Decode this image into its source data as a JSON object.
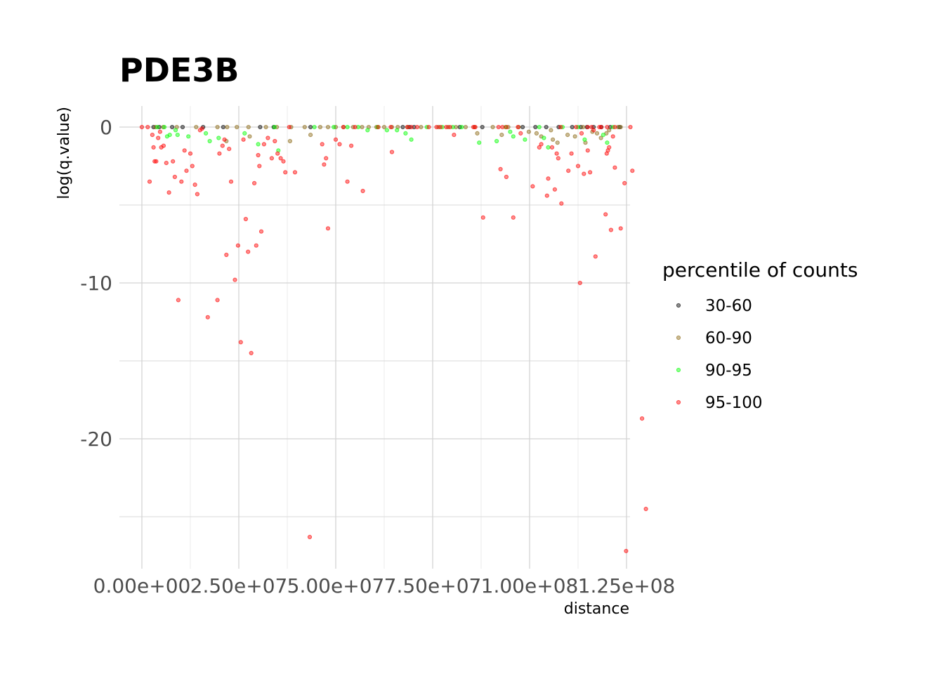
{
  "chart_data": {
    "type": "scatter",
    "title": "PDE3B",
    "xlabel": "distance",
    "ylabel": "log(q.value)",
    "xlim": [
      -5000000,
      126000000
    ],
    "ylim": [
      -28.5,
      1.3
    ],
    "x_ticks": [
      0,
      25000000,
      50000000,
      75000000,
      100000000,
      125000000
    ],
    "x_tick_labels": [
      "0.00e+00",
      "2.50e+07",
      "5.00e+07",
      "7.50e+07",
      "1.00e+08",
      "1.25e+08"
    ],
    "y_ticks": [
      0,
      -10,
      -20
    ],
    "y_tick_labels": [
      "0",
      "-10",
      "-20"
    ],
    "grid": true,
    "legend": {
      "title": "percentile of counts",
      "position": "right"
    },
    "series": [
      {
        "name": "30-60",
        "color": "#000000",
        "points": [
          [
            3000000,
            0
          ],
          [
            4500000,
            0
          ],
          [
            7800000,
            0
          ],
          [
            10500000,
            0
          ],
          [
            15800000,
            0
          ],
          [
            21000000,
            0
          ],
          [
            30500000,
            0
          ],
          [
            34000000,
            0
          ],
          [
            43500000,
            0
          ],
          [
            67300000,
            0
          ],
          [
            69000000,
            0
          ],
          [
            70200000,
            0
          ],
          [
            82000000,
            0
          ],
          [
            87800000,
            0
          ],
          [
            98200000,
            0
          ],
          [
            101500000,
            0
          ],
          [
            104300000,
            0
          ],
          [
            107500000,
            0
          ],
          [
            111000000,
            0
          ],
          [
            113200000,
            0
          ],
          [
            114800000,
            0
          ],
          [
            116500000,
            0
          ],
          [
            118500000,
            0
          ],
          [
            120800000,
            0
          ],
          [
            123200000,
            0
          ]
        ]
      },
      {
        "name": "60-90",
        "color": "#8b6914",
        "points": [
          [
            3500000,
            0
          ],
          [
            5500000,
            0
          ],
          [
            9000000,
            0
          ],
          [
            14000000,
            0
          ],
          [
            19500000,
            0
          ],
          [
            22000000,
            0
          ],
          [
            24500000,
            0
          ],
          [
            27500000,
            0
          ],
          [
            32000000,
            0
          ],
          [
            34800000,
            0
          ],
          [
            38500000,
            0
          ],
          [
            42000000,
            0
          ],
          [
            43500000,
            -0.5
          ],
          [
            46000000,
            0
          ],
          [
            48000000,
            0
          ],
          [
            50000000,
            0
          ],
          [
            52000000,
            0
          ],
          [
            54500000,
            0
          ],
          [
            56800000,
            0
          ],
          [
            58500000,
            0
          ],
          [
            60500000,
            0
          ],
          [
            62500000,
            0
          ],
          [
            64500000,
            0
          ],
          [
            66000000,
            0
          ],
          [
            68500000,
            0
          ],
          [
            72000000,
            0
          ],
          [
            76500000,
            0
          ],
          [
            79000000,
            0
          ],
          [
            81000000,
            0
          ],
          [
            83500000,
            0
          ],
          [
            85800000,
            0
          ],
          [
            86500000,
            -0.4
          ],
          [
            90500000,
            0
          ],
          [
            92800000,
            -0.5
          ],
          [
            94500000,
            0
          ],
          [
            97200000,
            0
          ],
          [
            99800000,
            -0.3
          ],
          [
            101800000,
            -0.4
          ],
          [
            103000000,
            -0.6
          ],
          [
            105500000,
            -0.2
          ],
          [
            106000000,
            -0.8
          ],
          [
            107200000,
            -1.0
          ],
          [
            109800000,
            -0.5
          ],
          [
            111700000,
            -0.6
          ],
          [
            113800000,
            0
          ],
          [
            114400000,
            -1.0
          ],
          [
            116200000,
            -0.3
          ],
          [
            117400000,
            -0.4
          ],
          [
            118400000,
            -0.7
          ],
          [
            119800000,
            -0.4
          ],
          [
            120500000,
            -0.2
          ],
          [
            122800000,
            0
          ],
          [
            123500000,
            0
          ],
          [
            38200000,
            -0.9
          ],
          [
            27800000,
            -0.6
          ],
          [
            21800000,
            -0.9
          ]
        ]
      },
      {
        "name": "90-95",
        "color": "#00ff00",
        "points": [
          [
            4000000,
            0
          ],
          [
            5800000,
            0
          ],
          [
            6500000,
            -0.6
          ],
          [
            7200000,
            -0.5
          ],
          [
            8700000,
            -0.2
          ],
          [
            9200000,
            -0.5
          ],
          [
            12000000,
            -0.6
          ],
          [
            16500000,
            -0.4
          ],
          [
            17500000,
            -0.9
          ],
          [
            19800000,
            -0.7
          ],
          [
            26500000,
            -0.4
          ],
          [
            30000000,
            -1.1
          ],
          [
            34200000,
            0
          ],
          [
            35200000,
            -1.5
          ],
          [
            44500000,
            0
          ],
          [
            49500000,
            0
          ],
          [
            53000000,
            0
          ],
          [
            55800000,
            0
          ],
          [
            58200000,
            -0.2
          ],
          [
            60800000,
            0
          ],
          [
            63200000,
            -0.2
          ],
          [
            65800000,
            -0.2
          ],
          [
            68000000,
            -0.4
          ],
          [
            69500000,
            -0.8
          ],
          [
            73500000,
            0
          ],
          [
            77500000,
            0
          ],
          [
            80200000,
            0
          ],
          [
            82500000,
            0
          ],
          [
            87000000,
            -1.0
          ],
          [
            91500000,
            -0.9
          ],
          [
            93800000,
            0
          ],
          [
            95000000,
            -0.3
          ],
          [
            95800000,
            -0.6
          ],
          [
            98800000,
            -0.8
          ],
          [
            102500000,
            0
          ],
          [
            103700000,
            -0.7
          ],
          [
            104800000,
            -1.3
          ],
          [
            108500000,
            0
          ],
          [
            112500000,
            0
          ],
          [
            114200000,
            -0.8
          ],
          [
            119000000,
            -0.5
          ],
          [
            120000000,
            -1.0
          ],
          [
            121500000,
            0
          ]
        ]
      },
      {
        "name": "95-100",
        "color": "#ff0000",
        "points": [
          [
            0,
            0
          ],
          [
            1500000,
            0
          ],
          [
            2000000,
            -3.5
          ],
          [
            2700000,
            -0.5
          ],
          [
            3000000,
            -1.3
          ],
          [
            3300000,
            -2.2
          ],
          [
            3700000,
            -2.2
          ],
          [
            4200000,
            -0.7
          ],
          [
            4700000,
            -0.3
          ],
          [
            5000000,
            -1.3
          ],
          [
            5600000,
            -1.2
          ],
          [
            6300000,
            -2.3
          ],
          [
            7000000,
            -4.2
          ],
          [
            8000000,
            -2.2
          ],
          [
            8500000,
            -3.2
          ],
          [
            9400000,
            -11.1
          ],
          [
            10200000,
            -3.5
          ],
          [
            11000000,
            -1.5
          ],
          [
            11500000,
            -2.8
          ],
          [
            12500000,
            -1.7
          ],
          [
            13000000,
            -2.5
          ],
          [
            13700000,
            -3.7
          ],
          [
            14300000,
            -4.3
          ],
          [
            15000000,
            -0.2
          ],
          [
            15500000,
            -0.1
          ],
          [
            17000000,
            -12.2
          ],
          [
            19500000,
            -11.1
          ],
          [
            20000000,
            -1.7
          ],
          [
            20800000,
            -1.2
          ],
          [
            21300000,
            -0.8
          ],
          [
            21800000,
            -8.2
          ],
          [
            22500000,
            -1.4
          ],
          [
            23000000,
            -3.5
          ],
          [
            24000000,
            -9.8
          ],
          [
            24800000,
            -7.6
          ],
          [
            25500000,
            -13.8
          ],
          [
            26200000,
            -0.8
          ],
          [
            26800000,
            -5.9
          ],
          [
            27400000,
            -8.0
          ],
          [
            28200000,
            -14.5
          ],
          [
            29000000,
            -3.6
          ],
          [
            29500000,
            -7.6
          ],
          [
            30000000,
            -1.8
          ],
          [
            30300000,
            -2.5
          ],
          [
            30800000,
            -6.7
          ],
          [
            31500000,
            -1.1
          ],
          [
            32500000,
            -0.7
          ],
          [
            33500000,
            -2.0
          ],
          [
            34300000,
            -0.9
          ],
          [
            35000000,
            -1.7
          ],
          [
            35800000,
            -2.0
          ],
          [
            36500000,
            -2.2
          ],
          [
            37000000,
            -2.9
          ],
          [
            38000000,
            0
          ],
          [
            39500000,
            -2.9
          ],
          [
            43300000,
            -26.3
          ],
          [
            46500000,
            -1.1
          ],
          [
            47000000,
            -2.4
          ],
          [
            47500000,
            -2.0
          ],
          [
            48000000,
            -6.5
          ],
          [
            50000000,
            -0.8
          ],
          [
            51000000,
            -1.1
          ],
          [
            52000000,
            0
          ],
          [
            53000000,
            -3.5
          ],
          [
            54000000,
            -1.2
          ],
          [
            55000000,
            0
          ],
          [
            57000000,
            -4.1
          ],
          [
            64200000,
            0
          ],
          [
            68500000,
            0
          ],
          [
            71000000,
            0
          ],
          [
            74000000,
            0
          ],
          [
            77000000,
            0
          ],
          [
            79500000,
            0
          ],
          [
            85500000,
            0
          ],
          [
            92000000,
            0
          ],
          [
            107000000,
            -1.7
          ],
          [
            112000000,
            0
          ],
          [
            118000000,
            0
          ],
          [
            122000000,
            0
          ],
          [
            120000000,
            0
          ],
          [
            116000000,
            0
          ],
          [
            94000000,
            0
          ],
          [
            93000000,
            0
          ],
          [
            78500000,
            0
          ],
          [
            61000000,
            0
          ],
          [
            64500000,
            -1.6
          ],
          [
            69500000,
            0
          ],
          [
            76000000,
            0
          ],
          [
            86000000,
            0
          ],
          [
            97000000,
            0
          ],
          [
            108000000,
            0
          ],
          [
            115000000,
            0
          ],
          [
            88000000,
            -5.8
          ],
          [
            80500000,
            -0.5
          ],
          [
            92500000,
            -2.7
          ],
          [
            94000000,
            -3.2
          ],
          [
            95800000,
            -5.8
          ],
          [
            97700000,
            -0.4
          ],
          [
            100800000,
            -3.8
          ],
          [
            102500000,
            -1.3
          ],
          [
            103000000,
            -1.1
          ],
          [
            104500000,
            -4.4
          ],
          [
            104800000,
            -3.3
          ],
          [
            105800000,
            -1.3
          ],
          [
            106500000,
            -4.0
          ],
          [
            107400000,
            -2.0
          ],
          [
            108200000,
            -4.9
          ],
          [
            110000000,
            -2.8
          ],
          [
            110800000,
            -1.7
          ],
          [
            112500000,
            -2.5
          ],
          [
            113000000,
            -10.0
          ],
          [
            113400000,
            -0.4
          ],
          [
            114000000,
            -3.0
          ],
          [
            115000000,
            -1.5
          ],
          [
            115600000,
            -2.9
          ],
          [
            116500000,
            -0.2
          ],
          [
            117000000,
            -8.3
          ],
          [
            118500000,
            0
          ],
          [
            119600000,
            -5.6
          ],
          [
            119900000,
            -1.7
          ],
          [
            120200000,
            -1.5
          ],
          [
            120500000,
            -1.3
          ],
          [
            121000000,
            -6.6
          ],
          [
            121500000,
            -0.6
          ],
          [
            122000000,
            -2.6
          ],
          [
            123500000,
            -6.5
          ],
          [
            124500000,
            -3.6
          ],
          [
            124900000,
            -27.2
          ],
          [
            126000000,
            0
          ],
          [
            126500000,
            -2.8
          ],
          [
            129000000,
            -18.7
          ],
          [
            130000000,
            -24.5
          ]
        ]
      }
    ]
  }
}
